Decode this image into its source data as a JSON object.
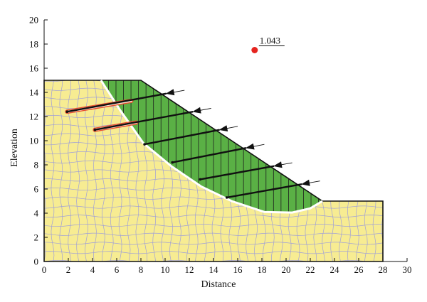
{
  "chart_data": {
    "type": "diagram",
    "xlabel": "Distance",
    "ylabel": "Elevation",
    "xlim": [
      0,
      30
    ],
    "ylim": [
      0,
      20
    ],
    "x_ticks": [
      0,
      2,
      4,
      6,
      8,
      10,
      12,
      14,
      16,
      18,
      20,
      22,
      24,
      26,
      28,
      30
    ],
    "y_ticks": [
      0,
      2,
      4,
      6,
      8,
      10,
      12,
      14,
      16,
      18,
      20
    ],
    "ground_profile": [
      [
        0,
        0
      ],
      [
        0,
        15
      ],
      [
        5,
        15
      ],
      [
        8,
        15
      ],
      [
        23,
        5
      ],
      [
        28,
        5
      ],
      [
        28,
        0
      ]
    ],
    "slip_surface": [
      [
        4.7,
        15
      ],
      [
        6.3,
        12.5
      ],
      [
        8.2,
        9.8
      ],
      [
        10.5,
        7.9
      ],
      [
        13,
        6.2
      ],
      [
        15.5,
        5
      ],
      [
        18.2,
        4.1
      ],
      [
        20.5,
        4.05
      ],
      [
        22,
        4.4
      ],
      [
        23,
        5
      ]
    ],
    "factor_of_safety": {
      "label": "1.043",
      "center": [
        17.4,
        17.5
      ],
      "color": "#e5241f"
    },
    "anchors": [
      {
        "start": [
          1.9,
          12.4
        ],
        "end": [
          10.1,
          13.9
        ],
        "grouted_end": [
          7.2,
          13.3
        ],
        "grouted": true
      },
      {
        "start": [
          4.2,
          10.9
        ],
        "end": [
          12.3,
          12.4
        ],
        "grouted_end": [
          7.6,
          11.5
        ],
        "grouted": true
      },
      {
        "start": [
          8.3,
          9.7
        ],
        "end": [
          14.5,
          10.9
        ],
        "grouted": false
      },
      {
        "start": [
          10.6,
          8.2
        ],
        "end": [
          16.7,
          9.4
        ],
        "grouted": false
      },
      {
        "start": [
          12.9,
          6.8
        ],
        "end": [
          19.0,
          7.9
        ],
        "grouted": false
      },
      {
        "start": [
          15.1,
          5.3
        ],
        "end": [
          21.3,
          6.4
        ],
        "grouted": false
      }
    ],
    "colors": {
      "soil": "#f7ec92",
      "mesh": "#9f9fd8",
      "sliding_mass": "#5ab045",
      "slip_line": "#ffffff",
      "anchor": "#111111",
      "grout": "#e8502f"
    }
  }
}
